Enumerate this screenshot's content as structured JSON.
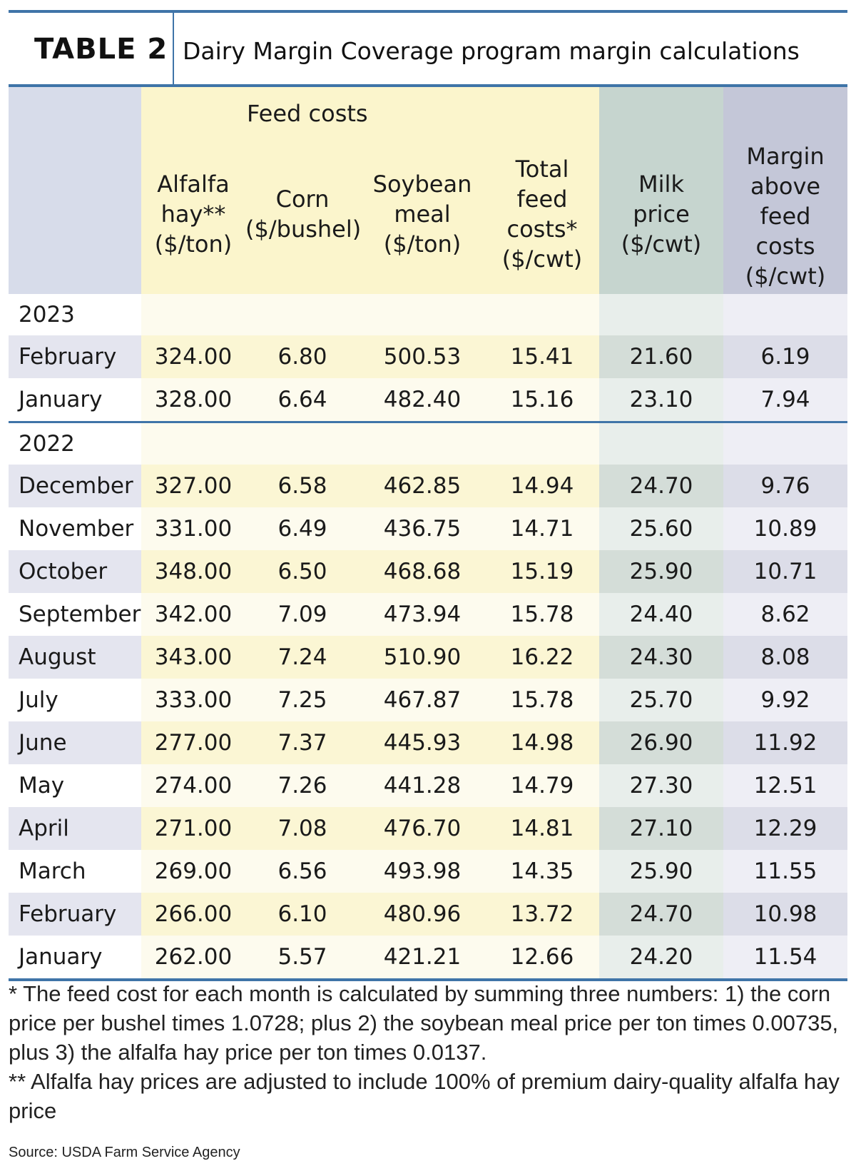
{
  "header": {
    "label": "TABLE 2",
    "title": "Dairy Margin Coverage program margin calculations"
  },
  "columns": {
    "feed_group": "Feed costs",
    "alfalfa": [
      "Alfalfa",
      "hay**",
      "($/ton)"
    ],
    "corn": [
      "Corn",
      "($/bushel)"
    ],
    "soybean": [
      "Soybean",
      "meal",
      "($/ton)"
    ],
    "total": [
      "Total",
      "feed",
      "costs*",
      "($/cwt)"
    ],
    "milk": [
      "Milk",
      "price",
      "($/cwt)"
    ],
    "margin": [
      "Margin",
      "above",
      "feed",
      "costs",
      "($/cwt)"
    ]
  },
  "years": [
    {
      "year": "2023",
      "rows": [
        {
          "month": "February",
          "alfalfa": "324.00",
          "corn": "6.80",
          "soybean": "500.53",
          "total": "15.41",
          "milk": "21.60",
          "margin": "6.19"
        },
        {
          "month": "January",
          "alfalfa": "328.00",
          "corn": "6.64",
          "soybean": "482.40",
          "total": "15.16",
          "milk": "23.10",
          "margin": "7.94"
        }
      ]
    },
    {
      "year": "2022",
      "rows": [
        {
          "month": "December",
          "alfalfa": "327.00",
          "corn": "6.58",
          "soybean": "462.85",
          "total": "14.94",
          "milk": "24.70",
          "margin": "9.76"
        },
        {
          "month": "November",
          "alfalfa": "331.00",
          "corn": "6.49",
          "soybean": "436.75",
          "total": "14.71",
          "milk": "25.60",
          "margin": "10.89"
        },
        {
          "month": "October",
          "alfalfa": "348.00",
          "corn": "6.50",
          "soybean": "468.68",
          "total": "15.19",
          "milk": "25.90",
          "margin": "10.71"
        },
        {
          "month": "September",
          "alfalfa": "342.00",
          "corn": "7.09",
          "soybean": "473.94",
          "total": "15.78",
          "milk": "24.40",
          "margin": "8.62"
        },
        {
          "month": "August",
          "alfalfa": "343.00",
          "corn": "7.24",
          "soybean": "510.90",
          "total": "16.22",
          "milk": "24.30",
          "margin": "8.08"
        },
        {
          "month": "July",
          "alfalfa": "333.00",
          "corn": "7.25",
          "soybean": "467.87",
          "total": "15.78",
          "milk": "25.70",
          "margin": "9.92"
        },
        {
          "month": "June",
          "alfalfa": "277.00",
          "corn": "7.37",
          "soybean": "445.93",
          "total": "14.98",
          "milk": "26.90",
          "margin": "11.92"
        },
        {
          "month": "May",
          "alfalfa": "274.00",
          "corn": "7.26",
          "soybean": "441.28",
          "total": "14.79",
          "milk": "27.30",
          "margin": "12.51"
        },
        {
          "month": "April",
          "alfalfa": "271.00",
          "corn": "7.08",
          "soybean": "476.70",
          "total": "14.81",
          "milk": "27.10",
          "margin": "12.29"
        },
        {
          "month": "March",
          "alfalfa": "269.00",
          "corn": "6.56",
          "soybean": "493.98",
          "total": "14.35",
          "milk": "25.90",
          "margin": "11.55"
        },
        {
          "month": "February",
          "alfalfa": "266.00",
          "corn": "6.10",
          "soybean": "480.96",
          "total": "13.72",
          "milk": "24.70",
          "margin": "10.98"
        },
        {
          "month": "January",
          "alfalfa": "262.00",
          "corn": "5.57",
          "soybean": "421.21",
          "total": "12.66",
          "milk": "24.20",
          "margin": "11.54"
        }
      ]
    }
  ],
  "notes": {
    "note1": "* The feed cost for each month is calculated by summing three numbers: 1) the corn price per bushel times 1.0728; plus 2) the soybean meal price per ton times 0.00735, plus 3) the alfalfa hay price per ton times 0.0137.",
    "note2": "** Alfalfa hay prices are adjusted to include 100% of premium dairy-quality alfalfa hay price",
    "source": "Source: USDA Farm Service Agency"
  }
}
